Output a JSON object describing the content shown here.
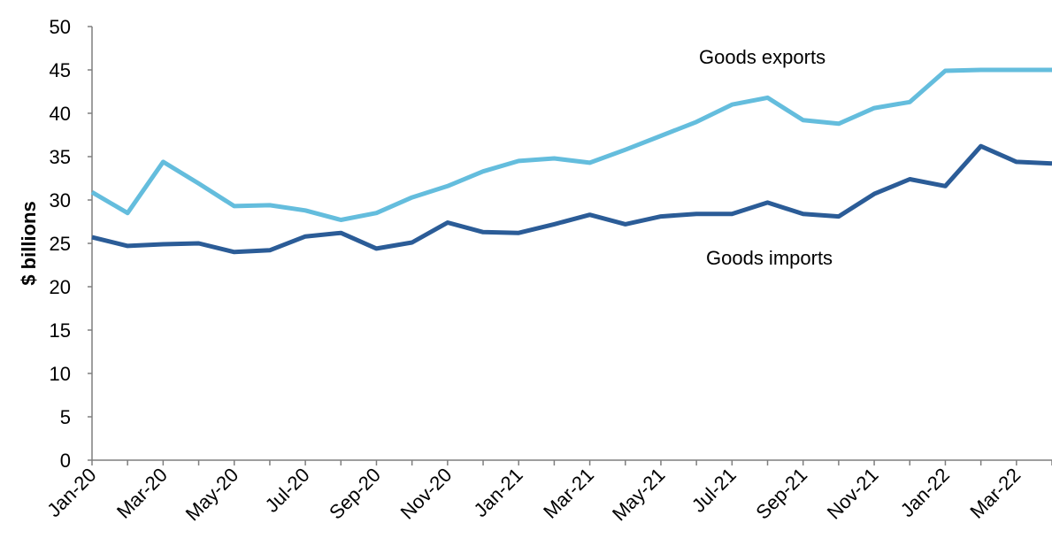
{
  "chart_data": {
    "type": "line",
    "title": "",
    "xlabel": "",
    "ylabel": "$ billions",
    "ylim": [
      0,
      50
    ],
    "yticks": [
      0,
      5,
      10,
      15,
      20,
      25,
      30,
      35,
      40,
      45,
      50
    ],
    "grid": false,
    "legend": "none (series labels placed on chart)",
    "x": [
      "Jan-20",
      "Feb-20",
      "Mar-20",
      "Apr-20",
      "May-20",
      "Jun-20",
      "Jul-20",
      "Aug-20",
      "Sep-20",
      "Oct-20",
      "Nov-20",
      "Dec-20",
      "Jan-21",
      "Feb-21",
      "Mar-21",
      "Apr-21",
      "May-21",
      "Jun-21",
      "Jul-21",
      "Aug-21",
      "Sep-21",
      "Oct-21",
      "Nov-21",
      "Dec-21",
      "Jan-22",
      "Feb-22",
      "Mar-22",
      "Apr-22"
    ],
    "xtick_labels": [
      "Jan-20",
      "Mar-20",
      "May-20",
      "Jul-20",
      "Sep-20",
      "Nov-20",
      "Jan-21",
      "Mar-21",
      "May-21",
      "Jul-21",
      "Sep-21",
      "Nov-21",
      "Jan-22",
      "Mar-22"
    ],
    "series": [
      {
        "name": "Goods exports",
        "color": "#64BDDD",
        "values": [
          30.9,
          28.5,
          34.4,
          31.9,
          29.3,
          29.4,
          28.8,
          27.7,
          28.5,
          30.3,
          31.6,
          33.3,
          34.5,
          34.8,
          34.3,
          35.8,
          37.4,
          39.0,
          41.0,
          41.8,
          39.2,
          38.8,
          40.6,
          41.3,
          44.9,
          45.0,
          45.0,
          45.0
        ]
      },
      {
        "name": "Goods imports",
        "color": "#2B5C97",
        "values": [
          25.7,
          24.7,
          24.9,
          25.0,
          24.0,
          24.2,
          25.8,
          26.2,
          24.4,
          25.1,
          27.4,
          26.3,
          26.2,
          27.2,
          28.3,
          27.2,
          28.1,
          28.4,
          28.4,
          29.7,
          28.4,
          28.1,
          30.7,
          32.4,
          31.6,
          36.2,
          34.4,
          34.2
        ]
      }
    ],
    "annotations": [
      {
        "text": "Goods exports",
        "series": 0
      },
      {
        "text": "Goods imports",
        "series": 1
      }
    ]
  }
}
